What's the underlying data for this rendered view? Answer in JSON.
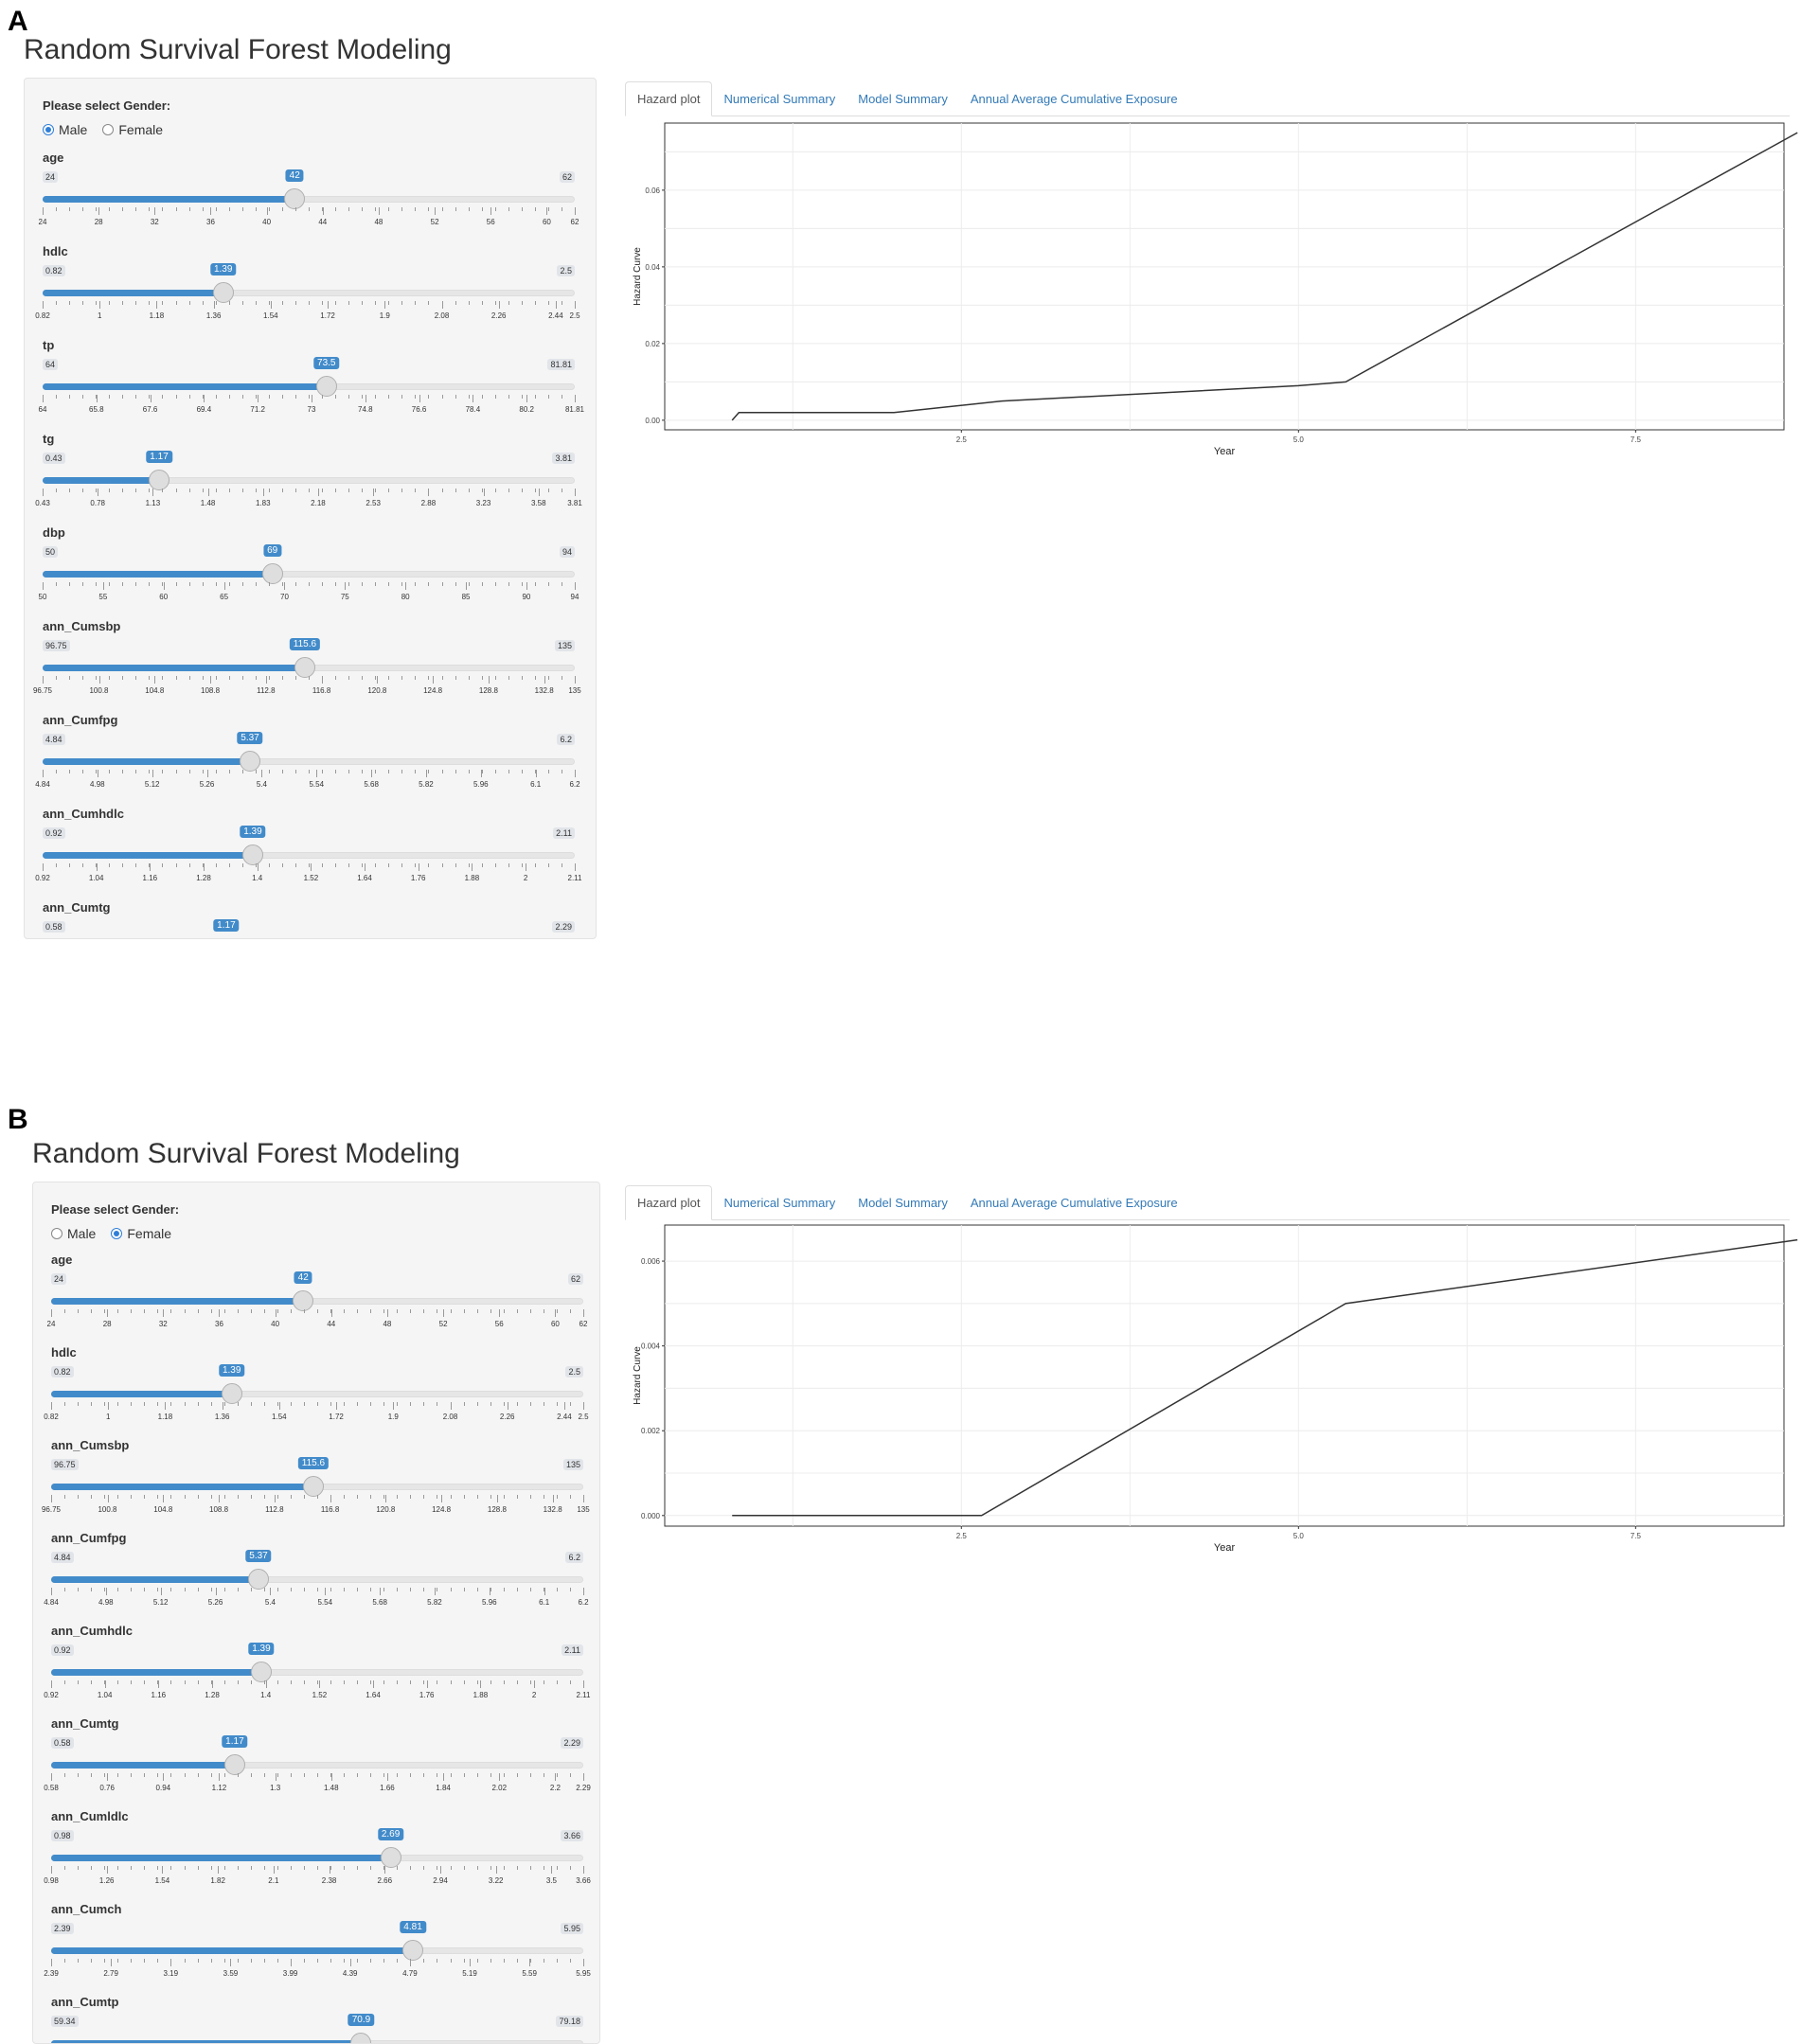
{
  "panels": [
    {
      "letter": "A",
      "app_title": "Random Survival Forest Modeling",
      "gender": {
        "label": "Please select Gender:",
        "options": [
          "Male",
          "Female"
        ],
        "selected": "Male"
      },
      "tabs": [
        "Hazard plot",
        "Numerical Summary",
        "Model Summary",
        "Annual Average Cumulative Exposure"
      ],
      "active_tab": "Hazard plot",
      "sliders": [
        {
          "label": "age",
          "min": 24,
          "max": 62,
          "value": 42,
          "ticks": [
            "24",
            "28",
            "32",
            "36",
            "40",
            "44",
            "48",
            "52",
            "56",
            "60",
            "62"
          ]
        },
        {
          "label": "hdlc",
          "min": 0.82,
          "max": 2.5,
          "value": 1.39,
          "ticks": [
            "0.82",
            "1",
            "1.18",
            "1.36",
            "1.54",
            "1.72",
            "1.9",
            "2.08",
            "2.26",
            "2.44",
            "2.5"
          ]
        },
        {
          "label": "tp",
          "min": 64,
          "max": 81.81,
          "value": 73.5,
          "ticks": [
            "64",
            "65.8",
            "67.6",
            "69.4",
            "71.2",
            "73",
            "74.8",
            "76.6",
            "78.4",
            "80.2",
            "81.81"
          ]
        },
        {
          "label": "tg",
          "min": 0.43,
          "max": 3.81,
          "value": 1.17,
          "ticks": [
            "0.43",
            "0.78",
            "1.13",
            "1.48",
            "1.83",
            "2.18",
            "2.53",
            "2.88",
            "3.23",
            "3.58",
            "3.81"
          ]
        },
        {
          "label": "dbp",
          "min": 50,
          "max": 94,
          "value": 69,
          "ticks": [
            "50",
            "55",
            "60",
            "65",
            "70",
            "75",
            "80",
            "85",
            "90",
            "94"
          ]
        },
        {
          "label": "ann_Cumsbp",
          "min": 96.75,
          "max": 135,
          "value": 115.6,
          "ticks": [
            "96.75",
            "100.8",
            "104.8",
            "108.8",
            "112.8",
            "116.8",
            "120.8",
            "124.8",
            "128.8",
            "132.8",
            "135"
          ]
        },
        {
          "label": "ann_Cumfpg",
          "min": 4.84,
          "max": 6.2,
          "value": 5.37,
          "ticks": [
            "4.84",
            "4.98",
            "5.12",
            "5.26",
            "5.4",
            "5.54",
            "5.68",
            "5.82",
            "5.96",
            "6.1",
            "6.2"
          ]
        },
        {
          "label": "ann_Cumhdlc",
          "min": 0.92,
          "max": 2.11,
          "value": 1.39,
          "ticks": [
            "0.92",
            "1.04",
            "1.16",
            "1.28",
            "1.4",
            "1.52",
            "1.64",
            "1.76",
            "1.88",
            "2",
            "2.11"
          ]
        },
        {
          "label": "ann_Cumtg",
          "min": 0.58,
          "max": 2.29,
          "value": 1.17,
          "ticks": []
        }
      ],
      "chart_data": {
        "type": "line",
        "xlabel": "Year",
        "ylabel": "Hazard Curve",
        "xlim": [
          0.3,
          8.6
        ],
        "ylim": [
          -0.0025,
          0.0775
        ],
        "x_ticks": [
          "2.5",
          "5.0",
          "7.5"
        ],
        "y_ticks": [
          "0.00",
          "0.02",
          "0.04",
          "0.06"
        ],
        "grid": true,
        "x": [
          0.8,
          0.85,
          2.0,
          2.8,
          5.0,
          5.35,
          8.7
        ],
        "y": [
          0.0,
          0.002,
          0.002,
          0.005,
          0.009,
          0.01,
          0.075
        ]
      }
    },
    {
      "letter": "B",
      "app_title": "Random Survival Forest Modeling",
      "gender": {
        "label": "Please select Gender:",
        "options": [
          "Male",
          "Female"
        ],
        "selected": "Female"
      },
      "tabs": [
        "Hazard plot",
        "Numerical Summary",
        "Model Summary",
        "Annual Average Cumulative Exposure"
      ],
      "active_tab": "Hazard plot",
      "sliders": [
        {
          "label": "age",
          "min": 24,
          "max": 62,
          "value": 42,
          "ticks": [
            "24",
            "28",
            "32",
            "36",
            "40",
            "44",
            "48",
            "52",
            "56",
            "60",
            "62"
          ]
        },
        {
          "label": "hdlc",
          "min": 0.82,
          "max": 2.5,
          "value": 1.39,
          "ticks": [
            "0.82",
            "1",
            "1.18",
            "1.36",
            "1.54",
            "1.72",
            "1.9",
            "2.08",
            "2.26",
            "2.44",
            "2.5"
          ]
        },
        {
          "label": "ann_Cumsbp",
          "min": 96.75,
          "max": 135,
          "value": 115.6,
          "ticks": [
            "96.75",
            "100.8",
            "104.8",
            "108.8",
            "112.8",
            "116.8",
            "120.8",
            "124.8",
            "128.8",
            "132.8",
            "135"
          ]
        },
        {
          "label": "ann_Cumfpg",
          "min": 4.84,
          "max": 6.2,
          "value": 5.37,
          "ticks": [
            "4.84",
            "4.98",
            "5.12",
            "5.26",
            "5.4",
            "5.54",
            "5.68",
            "5.82",
            "5.96",
            "6.1",
            "6.2"
          ]
        },
        {
          "label": "ann_Cumhdlc",
          "min": 0.92,
          "max": 2.11,
          "value": 1.39,
          "ticks": [
            "0.92",
            "1.04",
            "1.16",
            "1.28",
            "1.4",
            "1.52",
            "1.64",
            "1.76",
            "1.88",
            "2",
            "2.11"
          ]
        },
        {
          "label": "ann_Cumtg",
          "min": 0.58,
          "max": 2.29,
          "value": 1.17,
          "ticks": [
            "0.58",
            "0.76",
            "0.94",
            "1.12",
            "1.3",
            "1.48",
            "1.66",
            "1.84",
            "2.02",
            "2.2",
            "2.29"
          ]
        },
        {
          "label": "ann_Cumldlc",
          "min": 0.98,
          "max": 3.66,
          "value": 2.69,
          "ticks": [
            "0.98",
            "1.26",
            "1.54",
            "1.82",
            "2.1",
            "2.38",
            "2.66",
            "2.94",
            "3.22",
            "3.5",
            "3.66"
          ]
        },
        {
          "label": "ann_Cumch",
          "min": 2.39,
          "max": 5.95,
          "value": 4.81,
          "ticks": [
            "2.39",
            "2.79",
            "3.19",
            "3.59",
            "3.99",
            "4.39",
            "4.79",
            "5.19",
            "5.59",
            "5.95"
          ]
        },
        {
          "label": "ann_Cumtp",
          "min": 59.34,
          "max": 79.18,
          "value": 70.9,
          "ticks": []
        }
      ],
      "chart_data": {
        "type": "line",
        "xlabel": "Year",
        "ylabel": "Hazard Curve",
        "xlim": [
          0.3,
          8.6
        ],
        "ylim": [
          -0.00025,
          0.00685
        ],
        "x_ticks": [
          "2.5",
          "5.0",
          "7.5"
        ],
        "y_ticks": [
          "0.000",
          "0.002",
          "0.004",
          "0.006"
        ],
        "grid": true,
        "x": [
          0.8,
          2.65,
          5.35,
          8.7
        ],
        "y": [
          0.0,
          0.0,
          0.005,
          0.0065
        ]
      }
    }
  ],
  "colors": {
    "accent": "#428bca",
    "link": "#337ab7",
    "line": "#333333",
    "grid": "#ececec"
  }
}
